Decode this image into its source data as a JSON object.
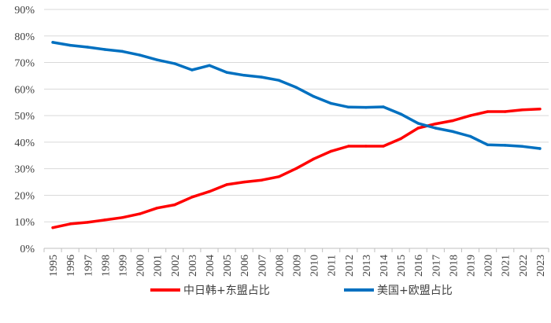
{
  "chart_data": {
    "type": "line",
    "title": "",
    "xlabel": "",
    "ylabel": "",
    "x": [
      "1995",
      "1996",
      "1997",
      "1998",
      "1999",
      "2000",
      "2001",
      "2002",
      "2003",
      "2004",
      "2005",
      "2006",
      "2007",
      "2008",
      "2009",
      "2010",
      "2011",
      "2012",
      "2013",
      "2014",
      "2015",
      "2016",
      "2017",
      "2018",
      "2019",
      "2020",
      "2021",
      "2022",
      "2023"
    ],
    "y_ticks": [
      "0%",
      "10%",
      "20%",
      "30%",
      "40%",
      "50%",
      "60%",
      "70%",
      "80%",
      "90%"
    ],
    "ylim": [
      0,
      90
    ],
    "grid": "horizontal",
    "legend_position": "bottom",
    "series": [
      {
        "name": "中日韩+东盟占比",
        "color": "#ff0000",
        "values": [
          7.8,
          9.2,
          9.8,
          10.7,
          11.6,
          13.0,
          15.2,
          16.4,
          19.3,
          21.4,
          24.0,
          25.0,
          25.7,
          27.0,
          30.1,
          33.7,
          36.6,
          38.5,
          38.5,
          38.5,
          41.3,
          45.3,
          46.9,
          48.1,
          50.0,
          51.5,
          51.5,
          52.2,
          52.5
        ]
      },
      {
        "name": "美国+欧盟占比",
        "color": "#0070c0",
        "values": [
          77.6,
          76.5,
          75.8,
          74.9,
          74.2,
          72.8,
          71.0,
          69.6,
          67.2,
          68.9,
          66.3,
          65.2,
          64.5,
          63.3,
          60.6,
          57.2,
          54.6,
          53.2,
          53.1,
          53.3,
          50.6,
          47.1,
          45.3,
          44.0,
          42.2,
          39.0,
          38.8,
          38.4,
          37.6
        ]
      }
    ]
  }
}
